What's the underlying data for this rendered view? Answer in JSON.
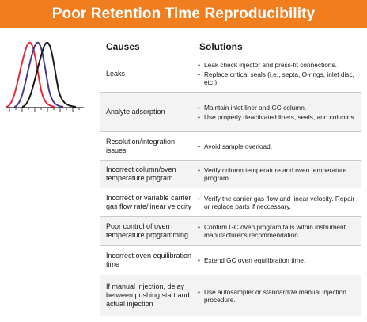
{
  "banner": {
    "title": "Poor Retention Time Reproducibility",
    "color": "#f07e1f"
  },
  "illustration": {
    "description_icon": "chromatogram-peaks-icon",
    "peak_colors": [
      "#e8283a",
      "#4a3a8c",
      "#1a1a1a"
    ]
  },
  "table": {
    "header": {
      "causes": "Causes",
      "solutions": "Solutions"
    },
    "rows": [
      {
        "cause": "Leaks",
        "solutions": [
          "Leak check injector and press-fit connections.",
          "Replace critical seals (i.e., septa, O-rings, inlet disc, etc.)"
        ]
      },
      {
        "cause": "Analyte adsorption",
        "solutions": [
          "Maintain inlet liner and GC column.",
          "Use properly deactivated liners, seals, and columns."
        ]
      },
      {
        "cause": "Resolution/integration issues",
        "solutions": [
          "Avoid sample overload."
        ]
      },
      {
        "cause": "Incorrect column/oven temperature program",
        "solutions": [
          "Verify column temperature and oven temperature program."
        ]
      },
      {
        "cause": "Incorrect or variable carrier gas flow rate/linear velocity",
        "solutions": [
          "Verify the carrier gas flow and linear velocity. Repair or replace parts if neccessary."
        ]
      },
      {
        "cause": "Poor control of oven temperature programming",
        "solutions": [
          "Confirm GC oven program falls within instrument manufacturer's recommendation."
        ]
      },
      {
        "cause": "Incorrect oven equilibration time",
        "solutions": [
          "Extend GC oven equilibration time."
        ]
      },
      {
        "cause": "If manual injection, delay between pushing start and actual injection",
        "solutions": [
          "Use autosampler or standardize manual injection procedure."
        ]
      }
    ]
  }
}
